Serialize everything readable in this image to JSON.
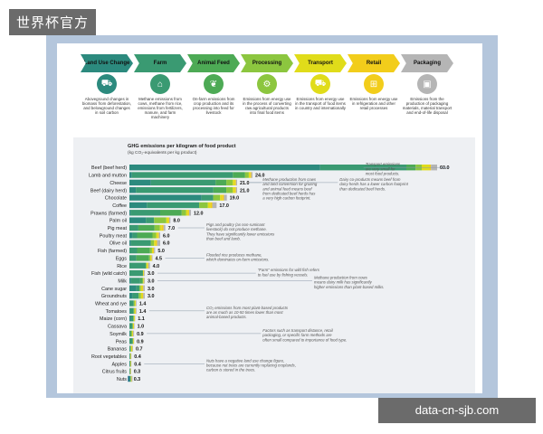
{
  "watermarks": {
    "top_left": "世界杯官方",
    "bottom_right": "data-cn-sjb.com"
  },
  "stages": [
    {
      "label": "Land Use Change",
      "color": "#2c8a7e",
      "icon": "tractor-icon",
      "glyph": "⛟",
      "desc": "Aboveground changes in biomass from deforestation, and belowground changes in soil carbon"
    },
    {
      "label": "Farm",
      "color": "#3a9a72",
      "icon": "barn-icon",
      "glyph": "⌂",
      "desc": "Methane emissions from cows, methane from rice, emissions from fertilizers, manure, and farm machinery"
    },
    {
      "label": "Animal Feed",
      "color": "#4daa55",
      "icon": "feed-icon",
      "glyph": "❦",
      "desc": "On-farm emissions from crop production and its processing into feed for livestock"
    },
    {
      "label": "Processing",
      "color": "#8cc63f",
      "icon": "processing-icon",
      "glyph": "⚙",
      "desc": "Emissions from energy use in the process of converting raw agricultural products into final food items"
    },
    {
      "label": "Transport",
      "color": "#e0dc1a",
      "icon": "truck-icon",
      "glyph": "⛟",
      "desc": "Emissions from energy use in the transport of food items in country and internationally"
    },
    {
      "label": "Retail",
      "color": "#f2cd1b",
      "icon": "basket-icon",
      "glyph": "⊞",
      "desc": "Emissions from energy use in refrigeration and other retail processes"
    },
    {
      "label": "Packaging",
      "color": "#b5b5b5",
      "icon": "package-icon",
      "glyph": "▣",
      "desc": "Emissions from the production of packaging materials, material transport and end-of-life disposal"
    }
  ],
  "chart_data": {
    "type": "bar",
    "orientation": "horizontal",
    "stacked": true,
    "title": "GHG emissions per kilogram of food product",
    "subtitle": "(kg CO₂-equivalents per kg product)",
    "segment_colors": [
      "#1f6f8b",
      "#2c8a7e",
      "#3a9a72",
      "#4daa55",
      "#8cc63f",
      "#e0dc1a",
      "#f2cd1b",
      "#b5b5b5"
    ],
    "xlim": [
      0,
      60
    ],
    "categories": [
      "Beef (beef herd)",
      "Lamb and mutton",
      "Cheese",
      "Beef (dairy herd)",
      "Chocolate",
      "Coffee",
      "Prawns (farmed)",
      "Palm oil",
      "Pig meat",
      "Poultry meat",
      "Olive oil",
      "Fish (farmed)",
      "Eggs",
      "Rice",
      "Fish (wild catch)",
      "Milk",
      "Cane sugar",
      "Groundnuts",
      "Wheat and rye",
      "Tomatoes",
      "Maize (corn)",
      "Cassava",
      "Soymilk",
      "Peas",
      "Bananas",
      "Root vegetables",
      "Apples",
      "Citrus fruits",
      "Nuts"
    ],
    "values": [
      60.0,
      24.0,
      21.0,
      21.0,
      19.0,
      17.0,
      12.0,
      8.0,
      7.0,
      6.0,
      6.0,
      5.0,
      4.5,
      4.0,
      3.0,
      3.0,
      3.0,
      3.0,
      1.4,
      1.4,
      1.1,
      1.0,
      0.9,
      0.9,
      0.7,
      0.4,
      0.4,
      0.3,
      0.3
    ],
    "labels": [
      "60.0",
      "24.0",
      "21.0",
      "21.0",
      "19.0",
      "17.0",
      "12.0",
      "8.0",
      "7.0",
      "6.0",
      "6.0",
      "5.0",
      "4.5",
      "4.0",
      "3.0",
      "3.0",
      "3.0",
      "3.0",
      "1.4",
      "1.4",
      "1.1",
      "1.0",
      "0.9",
      "0.9",
      "0.7",
      "0.4",
      "0.4",
      "0.3",
      "0.3"
    ],
    "segment_shares": [
      [
        0.62,
        0.28,
        0.03,
        0.02,
        0.025,
        0.005,
        0.02
      ],
      [
        0.02,
        0.82,
        0.1,
        0.03,
        0.01,
        0.01,
        0.01
      ],
      [
        0.2,
        0.6,
        0.1,
        0.06,
        0.02,
        0.01,
        0.01
      ],
      [
        0.06,
        0.72,
        0.12,
        0.06,
        0.02,
        0.01,
        0.01
      ],
      [
        0.74,
        0.12,
        0.0,
        0.07,
        0.02,
        0.02,
        0.03
      ],
      [
        0.2,
        0.6,
        0.0,
        0.1,
        0.03,
        0.02,
        0.05
      ],
      [
        0.02,
        0.48,
        0.35,
        0.07,
        0.03,
        0.02,
        0.03
      ],
      [
        0.4,
        0.2,
        0.0,
        0.3,
        0.05,
        0.02,
        0.03
      ],
      [
        0.0,
        0.25,
        0.45,
        0.15,
        0.05,
        0.05,
        0.05
      ],
      [
        0.1,
        0.15,
        0.5,
        0.12,
        0.05,
        0.04,
        0.04
      ],
      [
        0.05,
        0.65,
        0.0,
        0.1,
        0.05,
        0.05,
        0.1
      ],
      [
        0.0,
        0.3,
        0.5,
        0.08,
        0.04,
        0.04,
        0.04
      ],
      [
        0.0,
        0.3,
        0.55,
        0.05,
        0.04,
        0.03,
        0.03
      ],
      [
        0.0,
        0.8,
        0.0,
        0.04,
        0.04,
        0.04,
        0.08
      ],
      [
        0.0,
        0.88,
        0.0,
        0.0,
        0.04,
        0.03,
        0.05
      ],
      [
        0.1,
        0.6,
        0.15,
        0.05,
        0.03,
        0.03,
        0.04
      ],
      [
        0.45,
        0.2,
        0.0,
        0.1,
        0.1,
        0.05,
        0.1
      ],
      [
        0.2,
        0.4,
        0.0,
        0.15,
        0.1,
        0.05,
        0.1
      ],
      [
        0.05,
        0.55,
        0.0,
        0.15,
        0.1,
        0.05,
        0.1
      ],
      [
        0.1,
        0.5,
        0.0,
        0.1,
        0.1,
        0.1,
        0.1
      ],
      [
        0.3,
        0.4,
        0.0,
        0.1,
        0.1,
        0.05,
        0.05
      ],
      [
        0.0,
        0.6,
        0.0,
        0.1,
        0.1,
        0.1,
        0.1
      ],
      [
        0.1,
        0.2,
        0.0,
        0.3,
        0.1,
        0.1,
        0.2
      ],
      [
        0.0,
        0.7,
        0.0,
        0.1,
        0.1,
        0.05,
        0.05
      ],
      [
        0.0,
        0.35,
        0.0,
        0.1,
        0.3,
        0.1,
        0.15
      ],
      [
        0.0,
        0.4,
        0.0,
        0.1,
        0.2,
        0.1,
        0.2
      ],
      [
        0.0,
        0.45,
        0.0,
        0.05,
        0.2,
        0.1,
        0.2
      ],
      [
        0.0,
        0.5,
        0.0,
        0.05,
        0.2,
        0.1,
        0.15
      ],
      [
        -1.0,
        0.8,
        0.0,
        0.3,
        0.2,
        0.2,
        0.5
      ]
    ],
    "annotations": [
      {
        "text": [
          "Transport emissions",
          "are very small for",
          "most food products."
        ],
        "row": 0,
        "at": 46
      },
      {
        "text": [
          "Methane production from cows",
          "and land conversion for grazing",
          "and animal feed means beef",
          "from dedicated beef herds has",
          "a very high carbon footprint."
        ],
        "row": 2,
        "at": 26
      },
      {
        "text": [
          "Dairy co-products means beef from",
          "dairy herds has a lower carbon footprint",
          "than dedicated beef herds."
        ],
        "row": 2,
        "at": 41
      },
      {
        "text": [
          "Pigs and poultry (as non-ruminant",
          "livestock) do not produce methane.",
          "They have significantly lower emissions",
          "than beef and lamb."
        ],
        "row": 8,
        "at": 15
      },
      {
        "text": [
          "Flooded rice produces methane,",
          "which dominates on-farm emissions."
        ],
        "row": 12,
        "at": 15
      },
      {
        "text": [
          "\"Farm\" emissions for wild fish refers",
          "to fuel use by fishing vessels."
        ],
        "row": 14,
        "at": 25
      },
      {
        "text": [
          "Methane production from cows",
          "means dairy milk has significantly",
          "higher emissions than plant-based milks."
        ],
        "row": 15,
        "at": 36
      },
      {
        "text": [
          "CO₂ emissions from most plant-based products",
          "are as much as 10-50 times lower than most",
          "animal-based products."
        ],
        "row": 19,
        "at": 15
      },
      {
        "text": [
          "Factors such as transport distance, retail",
          "packaging, or specific farm methods are",
          "often small compared to importance of food type."
        ],
        "row": 22,
        "at": 26
      },
      {
        "text": [
          "Nuts have a negative land use change figure,",
          "because nut trees are currently replacing croplands,",
          "carbon is stored in the trees."
        ],
        "row": 26,
        "at": 15
      }
    ]
  }
}
